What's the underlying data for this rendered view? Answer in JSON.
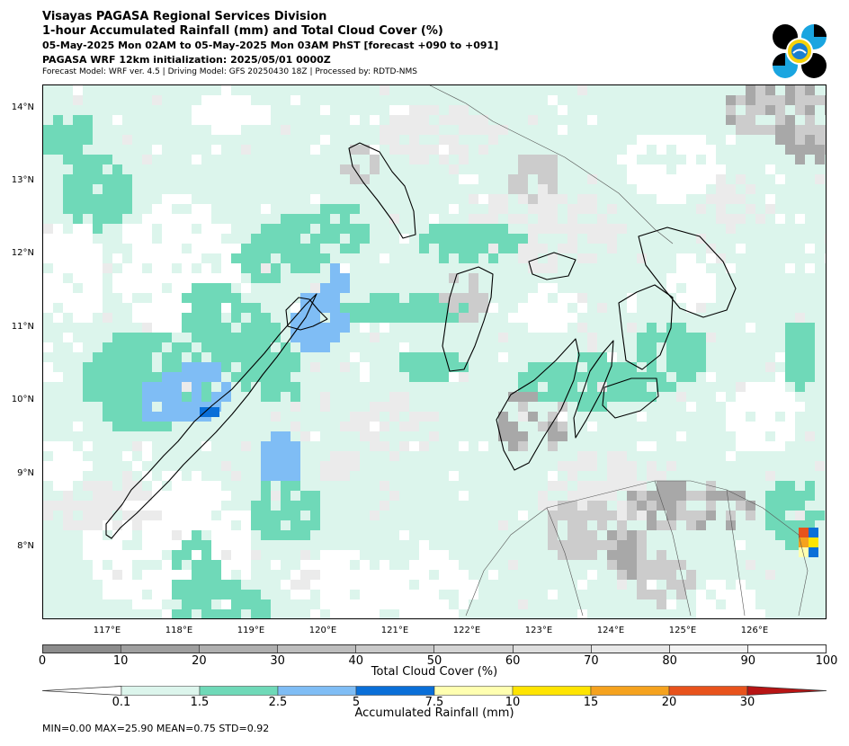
{
  "header": {
    "line1": "Visayas PAGASA Regional Services Division",
    "line2": "1-hour Accumulated Rainfall (mm) and Total Cloud Cover (%)",
    "line3": "05-May-2025 Mon 02AM to 05-May-2025 Mon 03AM PhST [forecast +090 to +091]",
    "line4": "PAGASA WRF 12km initialization: 2025/05/01 0000Z",
    "line5": "Forecast Model: WRF ver. 4.5 | Driving Model: GFS 20250430 18Z | Processed by: RDTD-NMS"
  },
  "logo": {
    "icon": "pagasa-logo"
  },
  "map": {
    "lat_labels": [
      "14°N",
      "13°N",
      "12°N",
      "11°N",
      "10°N",
      "9°N",
      "8°N"
    ],
    "lon_labels": [
      "117°E",
      "118°E",
      "119°E",
      "120°E",
      "121°E",
      "122°E",
      "123°E",
      "124°E",
      "125°E",
      "126°E"
    ],
    "colors": {
      "sea_rain_trace": "#dcf5ec",
      "rain_1_5": "#6fd9b8",
      "rain_2_5": "#7fbdf5",
      "rain_5": "#0a6fd8",
      "cloud_light": "#ebebeb",
      "cloud_mid": "#cccccc",
      "cloud_dark": "#a8a8a8",
      "coast": "#000000",
      "borders": "#555555"
    }
  },
  "cloud_cover_bar": {
    "title": "Total Cloud Cover (%)",
    "ticks": [
      "0",
      "10",
      "20",
      "30",
      "40",
      "50",
      "60",
      "70",
      "80",
      "90",
      "100"
    ],
    "colors": [
      "#8c8c8c",
      "#9f9f9f",
      "#afafaf",
      "#bdbdbd",
      "#c9c9c9",
      "#d4d4d4",
      "#dedede",
      "#e8e8e8",
      "#f2f2f2",
      "#ffffff"
    ]
  },
  "rainfall_bar": {
    "title": "Accumulated Rainfall (mm)",
    "ticks": [
      "0.1",
      "1.5",
      "2.5",
      "5",
      "7.5",
      "10",
      "15",
      "20",
      "30"
    ],
    "colors": [
      "#dcf5ec",
      "#6fd9b8",
      "#7fbdf5",
      "#0a6fd8",
      "#ffffb0",
      "#ffe400",
      "#f5a21e",
      "#e8531c"
    ],
    "under_color": "#ffffff",
    "over_color": "#b81414"
  },
  "stats": "MIN=0.00   MAX=25.90   MEAN=0.75   STD=0.92"
}
